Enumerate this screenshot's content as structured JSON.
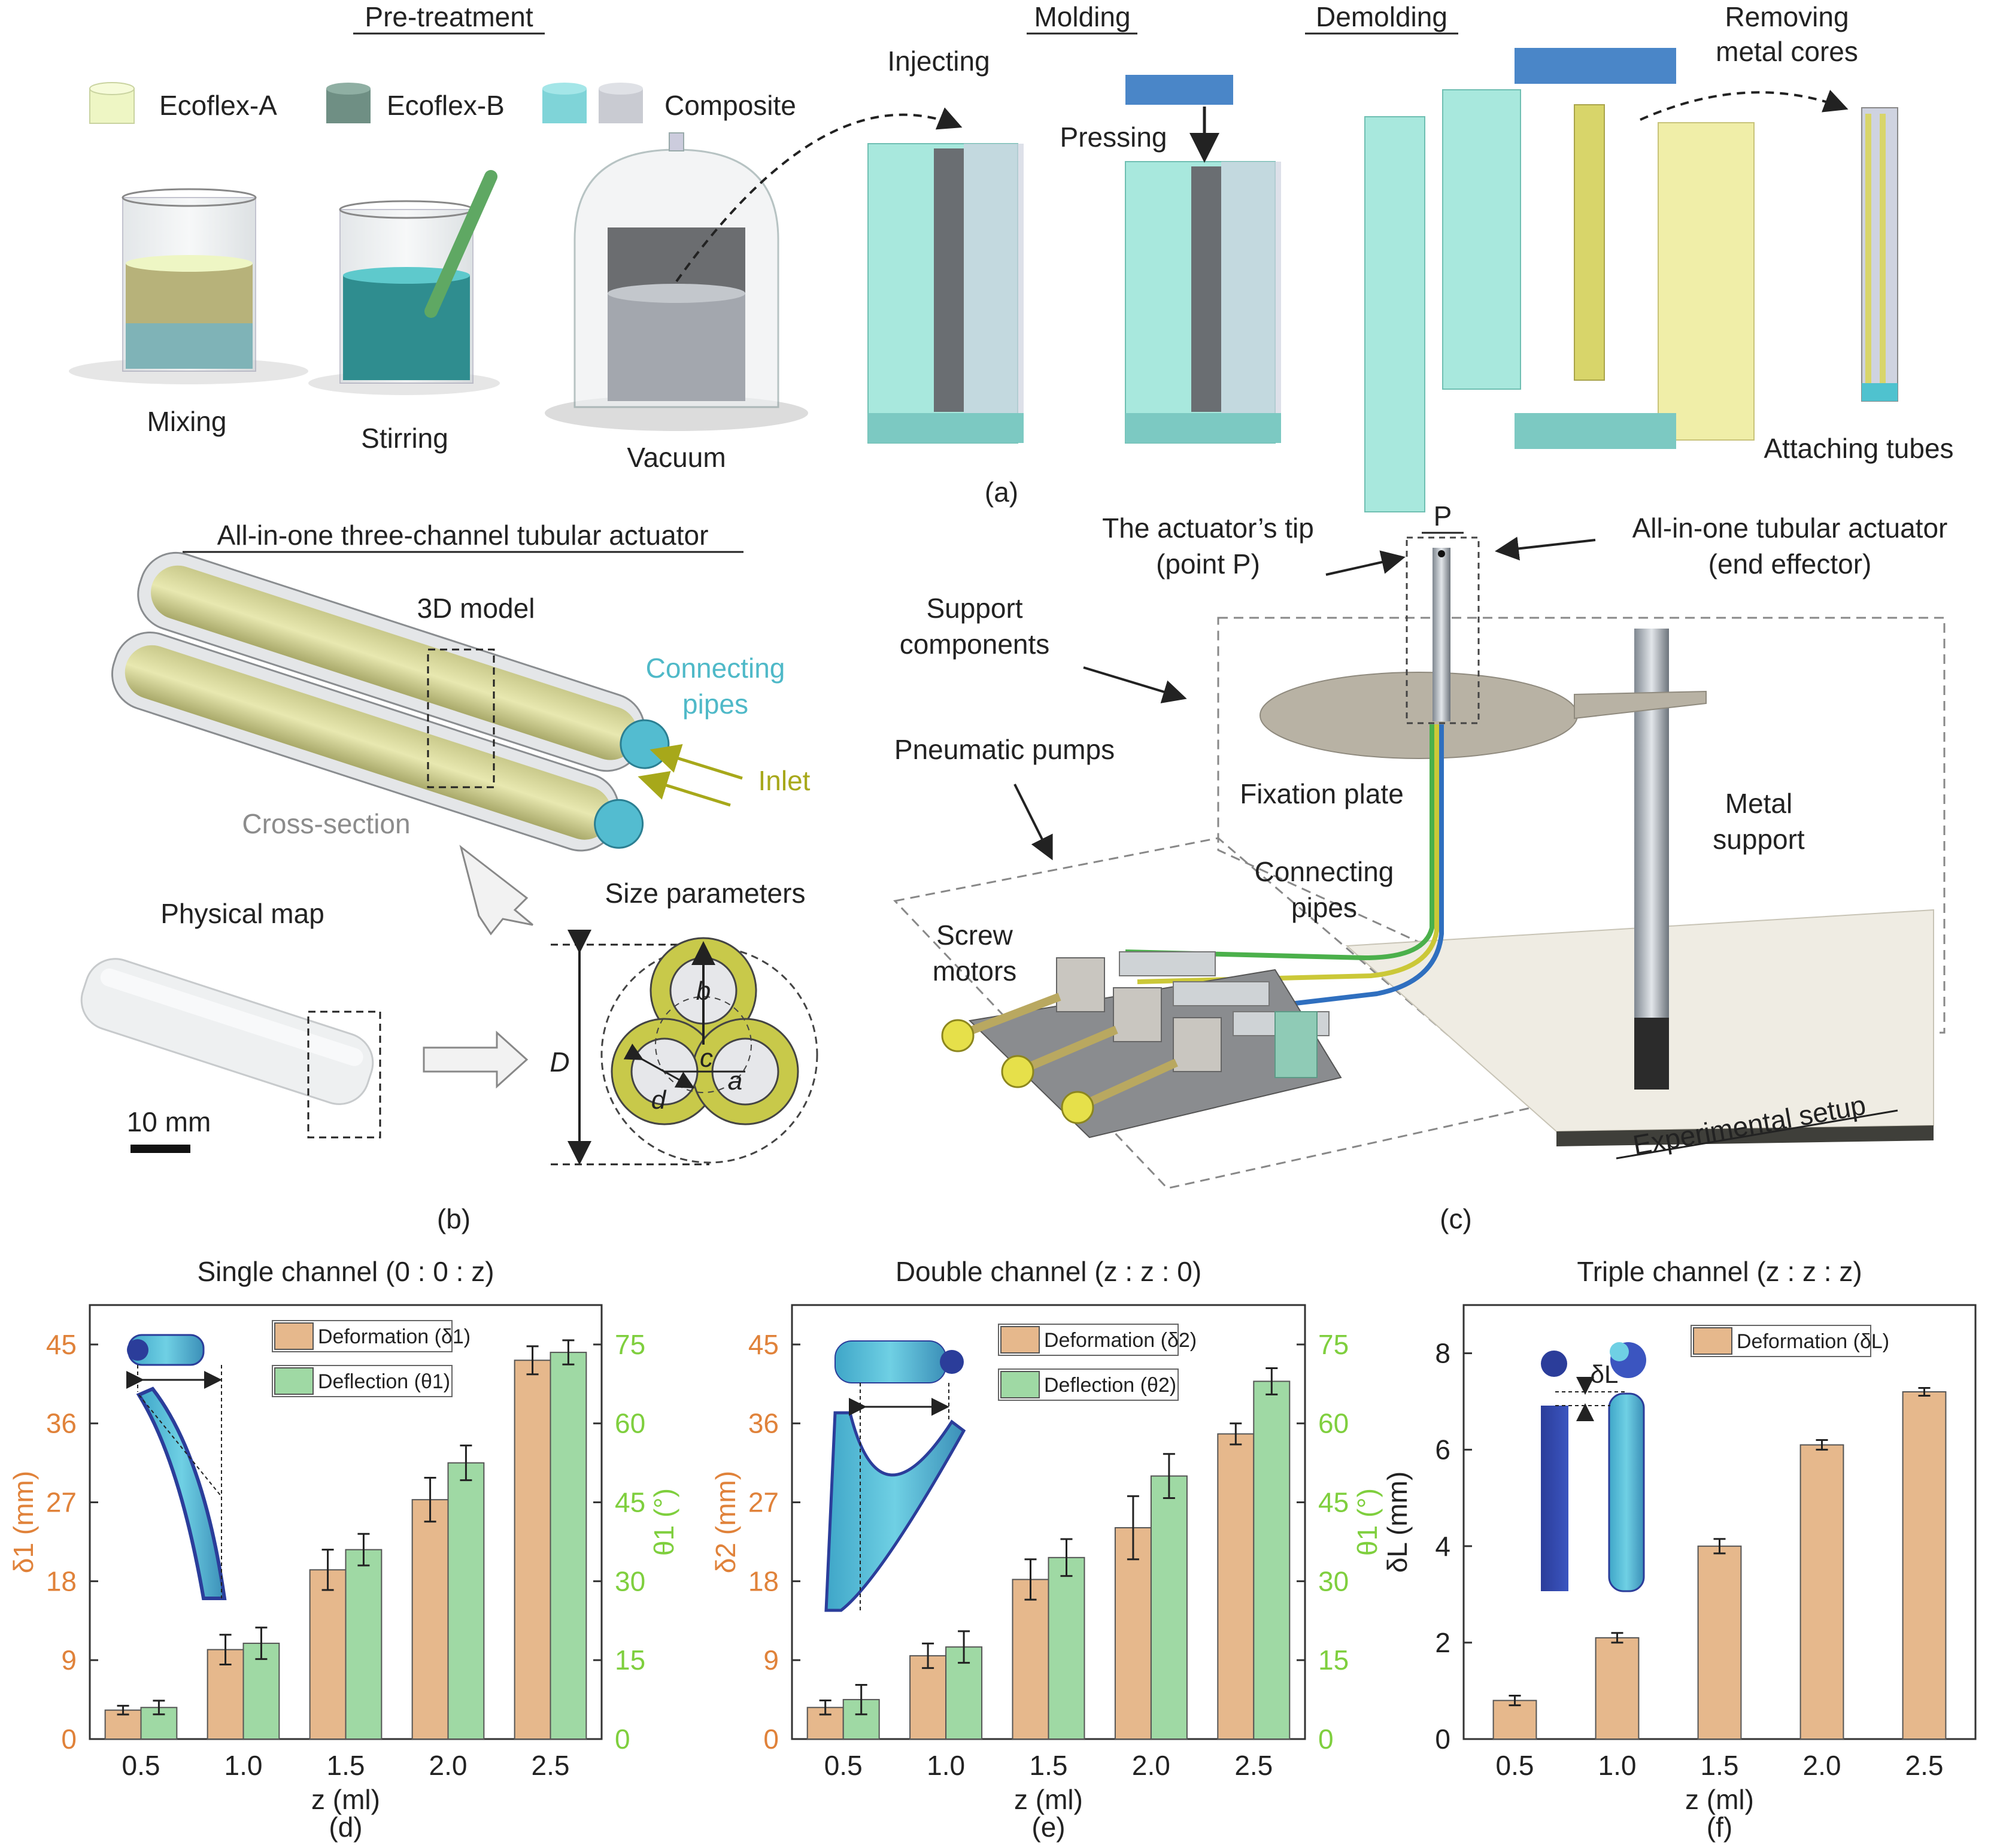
{
  "panel_a": {
    "label": "(a)",
    "section_pretreatment": "Pre-treatment",
    "section_molding": "Molding",
    "section_demolding": "Demolding",
    "legend_ecoflex_a": "Ecoflex-A",
    "legend_ecoflex_b": "Ecoflex-B",
    "legend_composite": "Composite",
    "step_mixing": "Mixing",
    "step_stirring": "Stirring",
    "step_vacuum": "Vacuum",
    "step_injecting": "Injecting",
    "step_pressing": "Pressing",
    "step_removing_1": "Removing",
    "step_removing_2": "metal cores",
    "step_attaching": "Attaching tubes",
    "colors": {
      "ecoflex_a": "#eef6c4",
      "ecoflex_b": "#6f8f84",
      "composite": "#7fd4d8",
      "composite2": "#c9cbd2",
      "mold": "#8fe0d2",
      "mold_top": "#4a86c8",
      "core": "#e9e38a"
    }
  },
  "panel_b": {
    "label": "(b)",
    "title": "All-in-one three-channel tubular actuator",
    "model_3d": "3D model",
    "connecting_pipes_1": "Connecting",
    "connecting_pipes_2": "pipes",
    "inlet": "Inlet",
    "cross_section": "Cross-section",
    "physical_map": "Physical map",
    "size_parameters": "Size parameters",
    "scale": "10 mm",
    "param_D": "D",
    "param_a": "a",
    "param_b": "b",
    "param_c": "c",
    "param_d": "d"
  },
  "panel_c": {
    "label": "(c)",
    "point_p": "P",
    "tip_1": "The actuator’s tip",
    "tip_2": "(point P)",
    "actuator_1": "All-in-one tubular actuator",
    "actuator_2": "(end effector)",
    "support_1": "Support",
    "support_2": "components",
    "pumps": "Pneumatic pumps",
    "fixation": "Fixation plate",
    "metal_1": "Metal",
    "metal_2": "support",
    "pipes_1": "Connecting",
    "pipes_2": "pipes",
    "screw_1": "Screw",
    "screw_2": "motors",
    "setup": "Experimental setup"
  },
  "chart_data": [
    {
      "id": "d",
      "type": "bar",
      "panel_label": "(d)",
      "title": "Single channel (0 : 0 : z)",
      "xlabel": "z (ml)",
      "ylabel": "δ1 (mm)",
      "ylabel_right": "θ1 (°)",
      "categories": [
        "0.5",
        "1.0",
        "1.5",
        "2.0",
        "2.5"
      ],
      "ylim": [
        0,
        49.5
      ],
      "yticks": [
        "0",
        "9",
        "18",
        "27",
        "36",
        "45"
      ],
      "ylim_right": [
        0,
        82.5
      ],
      "yticks_right": [
        "0",
        "15",
        "30",
        "45",
        "60",
        "75"
      ],
      "series": [
        {
          "name": "Deformation (δ1)",
          "axis": "left",
          "color": "#e6b88c",
          "values": [
            3.3,
            10.2,
            19.3,
            27.3,
            43.2
          ],
          "errors": [
            0.5,
            1.7,
            2.3,
            2.5,
            1.6
          ]
        },
        {
          "name": "Deflection (θ1)",
          "axis": "right",
          "color": "#9fd9a4",
          "values": [
            6.0,
            18.2,
            36.0,
            52.5,
            73.5
          ],
          "errors": [
            1.3,
            3.0,
            3.0,
            3.3,
            2.3
          ]
        }
      ]
    },
    {
      "id": "e",
      "type": "bar",
      "panel_label": "(e)",
      "title": "Double channel (z : z : 0)",
      "xlabel": "z (ml)",
      "ylabel": "δ2 (mm)",
      "ylabel_right": "θ1 (°)",
      "categories": [
        "0.5",
        "1.0",
        "1.5",
        "2.0",
        "2.5"
      ],
      "ylim": [
        0,
        49.5
      ],
      "yticks": [
        "0",
        "9",
        "18",
        "27",
        "36",
        "45"
      ],
      "ylim_right": [
        0,
        82.5
      ],
      "yticks_right": [
        "0",
        "15",
        "30",
        "45",
        "60",
        "75"
      ],
      "series": [
        {
          "name": "Deformation (δ2)",
          "axis": "left",
          "color": "#e6b88c",
          "values": [
            3.6,
            9.5,
            18.2,
            24.1,
            34.8
          ],
          "errors": [
            0.8,
            1.4,
            2.3,
            3.6,
            1.2
          ]
        },
        {
          "name": "Deflection (θ2)",
          "axis": "right",
          "color": "#9fd9a4",
          "values": [
            7.5,
            17.5,
            34.5,
            50.0,
            68.0
          ],
          "errors": [
            2.8,
            3.0,
            3.5,
            4.2,
            2.5
          ]
        }
      ]
    },
    {
      "id": "f",
      "type": "bar",
      "panel_label": "(f)",
      "title": "Triple channel (z : z : z)",
      "xlabel": "z (ml)",
      "ylabel": "δL (mm)",
      "categories": [
        "0.5",
        "1.0",
        "1.5",
        "2.0",
        "2.5"
      ],
      "ylim": [
        0,
        9
      ],
      "yticks": [
        "0",
        "2",
        "4",
        "6",
        "8"
      ],
      "inset_label": "δL",
      "series": [
        {
          "name": "Deformation (δL)",
          "axis": "left",
          "color": "#e6b88c",
          "values": [
            0.8,
            2.1,
            4.0,
            6.1,
            7.2
          ],
          "errors": [
            0.1,
            0.1,
            0.15,
            0.1,
            0.08
          ]
        }
      ]
    }
  ]
}
